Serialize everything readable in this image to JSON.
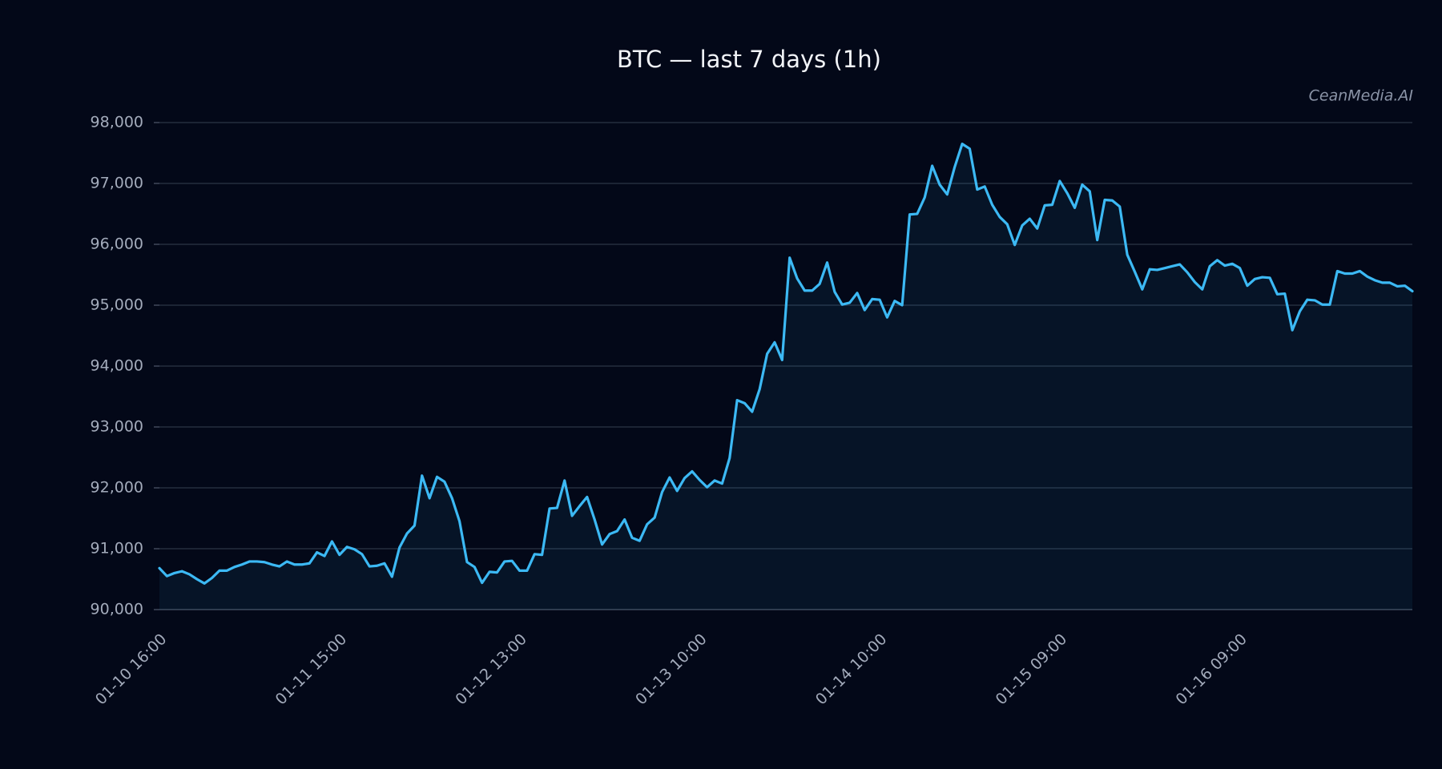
{
  "chart_data": {
    "type": "line",
    "title": "BTC — last 7 days (1h)",
    "watermark": "CeanMedia.AI",
    "categories": [
      "01-10 16:00",
      null,
      null,
      null,
      null,
      null,
      null,
      null,
      null,
      null,
      null,
      null,
      null,
      null,
      null,
      null,
      null,
      null,
      null,
      null,
      null,
      null,
      null,
      null,
      "01-11 15:00",
      null,
      null,
      null,
      null,
      null,
      null,
      null,
      null,
      null,
      null,
      null,
      null,
      null,
      null,
      null,
      null,
      null,
      null,
      null,
      null,
      null,
      null,
      null,
      "01-12 13:00",
      null,
      null,
      null,
      null,
      null,
      null,
      null,
      null,
      null,
      null,
      null,
      null,
      null,
      null,
      null,
      null,
      null,
      null,
      null,
      null,
      null,
      null,
      null,
      "01-13 10:00",
      null,
      null,
      null,
      null,
      null,
      null,
      null,
      null,
      null,
      null,
      null,
      null,
      null,
      null,
      null,
      null,
      null,
      null,
      null,
      null,
      null,
      null,
      null,
      "01-14 10:00",
      null,
      null,
      null,
      null,
      null,
      null,
      null,
      null,
      null,
      null,
      null,
      null,
      null,
      null,
      null,
      null,
      null,
      null,
      null,
      null,
      null,
      null,
      null,
      "01-15 09:00",
      null,
      null,
      null,
      null,
      null,
      null,
      null,
      null,
      null,
      null,
      null,
      null,
      null,
      null,
      null,
      null,
      null,
      null,
      null,
      null,
      null,
      null,
      null,
      "01-16 09:00",
      null,
      null,
      null,
      null,
      null,
      null,
      null,
      null,
      null,
      null,
      null,
      null,
      null,
      null,
      null,
      null,
      null,
      null,
      null,
      null,
      null,
      null,
      null
    ],
    "series": [
      {
        "name": "BTC",
        "color": "#3cb9f4",
        "values": [
          90680,
          90550,
          90600,
          90630,
          90580,
          90500,
          90430,
          90520,
          90640,
          90640,
          90700,
          90740,
          90790,
          90790,
          90780,
          90740,
          90710,
          90790,
          90740,
          90740,
          90760,
          90940,
          90880,
          91120,
          90900,
          91030,
          90990,
          90910,
          90710,
          90720,
          90760,
          90540,
          91020,
          91250,
          91380,
          92200,
          91830,
          92180,
          92100,
          91830,
          91450,
          90780,
          90700,
          90440,
          90620,
          90610,
          90790,
          90800,
          90640,
          90640,
          90910,
          90900,
          91660,
          91670,
          92120,
          91540,
          91700,
          91850,
          91480,
          91070,
          91240,
          91290,
          91480,
          91180,
          91130,
          91400,
          91510,
          91930,
          92170,
          91950,
          92160,
          92270,
          92130,
          92010,
          92120,
          92070,
          92490,
          93440,
          93390,
          93250,
          93620,
          94200,
          94390,
          94100,
          95780,
          95440,
          95240,
          95240,
          95350,
          95700,
          95220,
          95010,
          95040,
          95200,
          94920,
          95100,
          95090,
          94800,
          95070,
          95000,
          96490,
          96500,
          96770,
          97290,
          96980,
          96820,
          97270,
          97650,
          97570,
          96900,
          96950,
          96650,
          96450,
          96330,
          95990,
          96310,
          96420,
          96260,
          96640,
          96650,
          97040,
          96840,
          96600,
          96980,
          96870,
          96070,
          96730,
          96720,
          96620,
          95830,
          95550,
          95260,
          95590,
          95580,
          95610,
          95640,
          95670,
          95540,
          95380,
          95260,
          95640,
          95740,
          95650,
          95680,
          95610,
          95320,
          95430,
          95460,
          95450,
          95180,
          95190,
          94590,
          94900,
          95090,
          95080,
          95010,
          95010,
          95560,
          95520,
          95520,
          95560,
          95470,
          95410,
          95370,
          95370,
          95310,
          95320,
          95230
        ]
      }
    ],
    "ylim": [
      90000,
      98000
    ],
    "yticks": [
      {
        "value": 90000,
        "label": "90,000"
      },
      {
        "value": 91000,
        "label": "91,000"
      },
      {
        "value": 92000,
        "label": "92,000"
      },
      {
        "value": 93000,
        "label": "93,000"
      },
      {
        "value": 94000,
        "label": "94,000"
      },
      {
        "value": 95000,
        "label": "95,000"
      },
      {
        "value": 96000,
        "label": "96,000"
      },
      {
        "value": 97000,
        "label": "97,000"
      },
      {
        "value": 98000,
        "label": "98,000"
      }
    ],
    "grid": true
  }
}
